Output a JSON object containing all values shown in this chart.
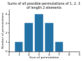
{
  "title": "Sums of all possible permutations of 1, 2, 3 of length 2 elements",
  "xlabel": "Sum of permutation",
  "ylabel": "Number of permutations",
  "bar_centers": [
    3,
    4,
    5,
    6,
    7
  ],
  "bar_heights": [
    1,
    3,
    4,
    3,
    1
  ],
  "bar_color": "#2372a6",
  "bar_width": 0.8,
  "xlim": [
    2,
    9
  ],
  "ylim": [
    0,
    4.5
  ],
  "xticks": [
    2,
    3,
    4,
    5,
    6,
    7,
    8,
    9
  ],
  "yticks": [
    0,
    1,
    2,
    3,
    4
  ],
  "title_fontsize": 3.5,
  "label_fontsize": 3.2,
  "tick_fontsize": 3.0
}
